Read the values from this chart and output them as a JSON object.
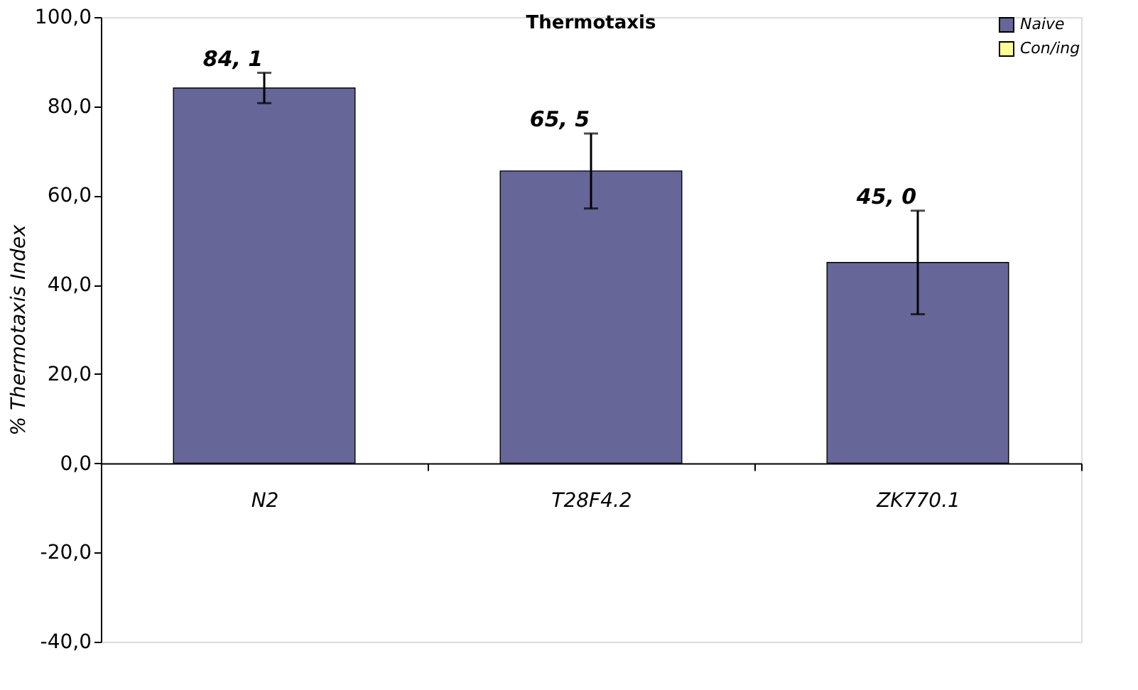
{
  "chart_data": {
    "type": "bar",
    "title": "Thermotaxis",
    "ylabel": "% Thermotaxis Index",
    "categories": [
      "N2",
      "T28F4.2",
      "ZK770.1"
    ],
    "series": [
      {
        "name": "Naive",
        "color": "#666699",
        "values": [
          84.1,
          65.5,
          45.0
        ],
        "errors": [
          3.4,
          8.4,
          11.6
        ],
        "value_labels": [
          "84, 1",
          "65, 5",
          "45, 0"
        ]
      },
      {
        "name": "Con/ing",
        "color": "#ffff99",
        "values": [
          null,
          null,
          null
        ]
      }
    ],
    "ylim": [
      -40,
      100
    ],
    "yticks": [
      {
        "value": -40,
        "label": "-40,0"
      },
      {
        "value": -20,
        "label": "-20,0"
      },
      {
        "value": 0,
        "label": "0,0"
      },
      {
        "value": 20,
        "label": "20,0"
      },
      {
        "value": 40,
        "label": "40,0"
      },
      {
        "value": 60,
        "label": "60,0"
      },
      {
        "value": 80,
        "label": "80,0"
      },
      {
        "value": 100,
        "label": "100,0"
      }
    ],
    "grid": false,
    "legend": "top right"
  }
}
